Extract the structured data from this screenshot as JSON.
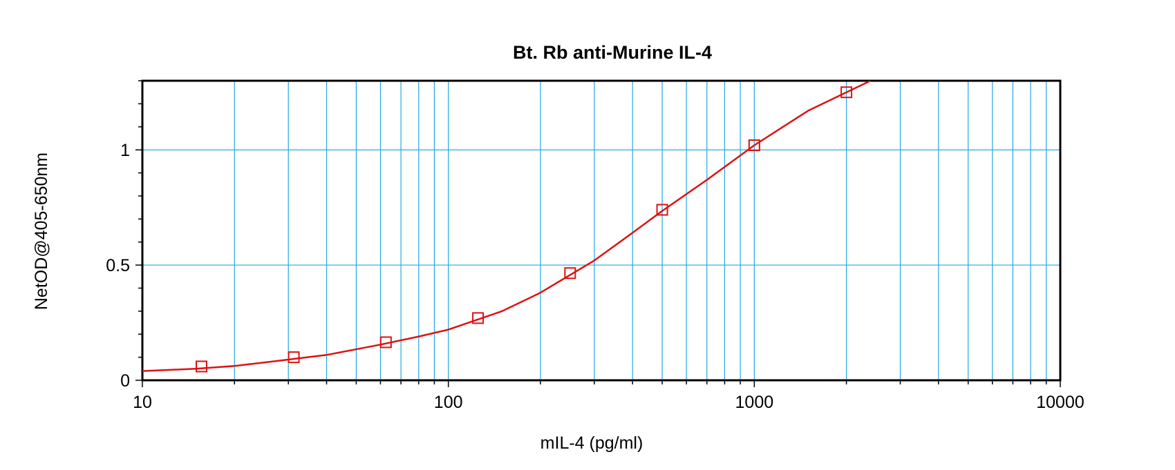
{
  "chart_data": {
    "type": "scatter",
    "title": "Bt. Rb anti-Murine IL-4",
    "xlabel": "mIL-4 (pg/ml)",
    "ylabel": "NetOD@405-650nm",
    "xscale": "log",
    "xlim": [
      10,
      10000
    ],
    "ylim": [
      0,
      1.3
    ],
    "x_ticks": [
      10,
      100,
      1000,
      10000
    ],
    "x_tick_labels": [
      "10",
      "100",
      "1000",
      "10000"
    ],
    "y_ticks": [
      0,
      0.5,
      1
    ],
    "y_tick_labels": [
      "0",
      "0.5",
      "1"
    ],
    "grid": true,
    "series": [
      {
        "marker": "square",
        "x": [
          15.6,
          31.25,
          62.5,
          125,
          250,
          500,
          1000,
          2000
        ],
        "y": [
          0.06,
          0.1,
          0.165,
          0.27,
          0.465,
          0.74,
          1.02,
          1.25
        ]
      }
    ],
    "fit_curve": {
      "type": "4PL",
      "x": [
        10,
        15,
        20,
        30,
        40,
        60,
        80,
        100,
        150,
        200,
        300,
        400,
        500,
        700,
        1000,
        1500,
        2000,
        2400
      ],
      "y": [
        0.04,
        0.05,
        0.062,
        0.09,
        0.11,
        0.155,
        0.19,
        0.22,
        0.3,
        0.38,
        0.52,
        0.64,
        0.735,
        0.87,
        1.02,
        1.17,
        1.25,
        1.3
      ]
    },
    "colors": {
      "data": "#dd1111",
      "grid": "#22a8e0",
      "axis": "#000000"
    }
  }
}
